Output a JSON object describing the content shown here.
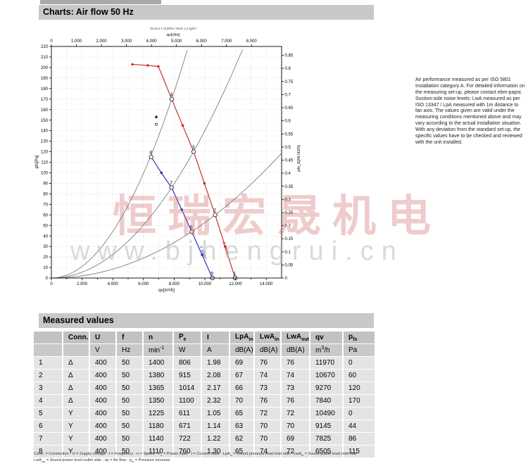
{
  "page": {
    "section1_title": "Charts: Air flow 50 Hz",
    "section2_title": "Measured values"
  },
  "side_note": "Air performance measured as per ISO 5801 Installation category A. For detailed information on the measuring set-up, please contact ebm-papst. Suction-side noise levels: LwA measured as per ISO 13347 / LpA measured with 1m distance to fan axis. The values given are valid under the measuring conditions mentioned above and may vary according to the actual installation situation. With any deviation from the standard set-up, the specific values have to be checked and reviewed with the unit installed.",
  "watermark": {
    "cjk": "恒瑞宏晟机电",
    "url": "www.bjhengrui.cn"
  },
  "chart_data": {
    "type": "line",
    "top_note": "Druck p 1 013hPa / Norm 1,2 kg/m³",
    "axes": {
      "top": {
        "label": "qv[cfm]",
        "max": 8000,
        "step": 1000,
        "m3h_per_unit": 1.63
      },
      "bottom": {
        "label": "qv[m³/h]",
        "min": 0,
        "max": 15000,
        "label_step": 2000,
        "minor_step": 1000
      },
      "left": {
        "label": "pfs[Pa]",
        "min": 0,
        "max": 220,
        "step": 10
      },
      "right": {
        "label": "pfs_E[IN H2O]",
        "max": 0.85,
        "step": 0.05,
        "pa_per_unit": 249
      }
    },
    "series": [
      {
        "name": "Δ 400V",
        "connection": "Δ",
        "color": "#c62828",
        "label_pos": [
          11150,
          34
        ],
        "label_rot": 72,
        "points": [
          [
            5275,
            203,
            "dot"
          ],
          [
            6280,
            202,
            "dot"
          ],
          [
            6970,
            201,
            "dot"
          ],
          [
            7200,
            193,
            "none"
          ],
          [
            7840,
            170,
            "num",
            "4"
          ],
          [
            8550,
            145,
            "sq"
          ],
          [
            9270,
            120,
            "num",
            "3"
          ],
          [
            9970,
            90,
            "sq"
          ],
          [
            10670,
            60,
            "num",
            "2"
          ],
          [
            11320,
            30,
            "sq"
          ],
          [
            11970,
            0,
            "num",
            "1"
          ]
        ]
      },
      {
        "name": "Y 400V",
        "connection": "Y",
        "color": "#2b2bb5",
        "label_pos": [
          9640,
          30
        ],
        "label_rot": 68,
        "points": [
          [
            6505,
            115,
            "num",
            "8"
          ],
          [
            7165,
            100,
            "sq"
          ],
          [
            7825,
            86,
            "num",
            "7"
          ],
          [
            8490,
            65,
            "sq"
          ],
          [
            9145,
            44,
            "num",
            "6"
          ],
          [
            9820,
            22,
            "sq"
          ],
          [
            10490,
            0,
            "num",
            "5"
          ]
        ]
      }
    ],
    "system_curves": [
      {
        "k": 2.766
      },
      {
        "k": 1.4
      },
      {
        "k": 0.527
      }
    ],
    "extra_markers": [
      {
        "q": 6835,
        "p": 153,
        "shape": "diamond"
      },
      {
        "q": 6835,
        "p": 146,
        "shape": "circle"
      }
    ]
  },
  "table": {
    "headers": [
      "",
      "Conn.",
      "U",
      "f",
      "n",
      "P_{e}",
      "I",
      "LpA_{in}",
      "LwA_{in}",
      "LwA_{out}",
      "qv",
      "p_{fs}"
    ],
    "units": [
      "",
      "",
      "V",
      "Hz",
      "min^{-1}",
      "W",
      "A",
      "dB(A)",
      "dB(A)",
      "dB(A)",
      "m^{3}/h",
      "Pa"
    ],
    "rows": [
      [
        "1",
        "Δ",
        "400",
        "50",
        "1400",
        "806",
        "1.98",
        "69",
        "76",
        "76",
        "11970",
        "0"
      ],
      [
        "2",
        "Δ",
        "400",
        "50",
        "1380",
        "915",
        "2.08",
        "67",
        "74",
        "74",
        "10670",
        "60"
      ],
      [
        "3",
        "Δ",
        "400",
        "50",
        "1365",
        "1014",
        "2.17",
        "66",
        "73",
        "73",
        "9270",
        "120"
      ],
      [
        "4",
        "Δ",
        "400",
        "50",
        "1350",
        "1100",
        "2.32",
        "70",
        "76",
        "76",
        "7840",
        "170"
      ],
      [
        "5",
        "Y",
        "400",
        "50",
        "1225",
        "611",
        "1.05",
        "65",
        "72",
        "72",
        "10490",
        "0"
      ],
      [
        "6",
        "Y",
        "400",
        "50",
        "1180",
        "671",
        "1.14",
        "63",
        "70",
        "70",
        "9145",
        "44"
      ],
      [
        "7",
        "Y",
        "400",
        "50",
        "1140",
        "722",
        "1.22",
        "62",
        "70",
        "69",
        "7825",
        "86"
      ],
      [
        "8",
        "Y",
        "400",
        "50",
        "1110",
        "760",
        "1.30",
        "65",
        "74",
        "72",
        "6505",
        "115"
      ]
    ]
  },
  "footnotes": {
    "line1": "Conn. = Connection · U = Supply voltage · f = Frequency · n = Speed · P_{e} = Power input · I = Current draw · LpA_{in} = Sound pressure level inlet side · LwA_{in} = Sound power level inlet side",
    "line2": "LwA_{out} = Sound power level outlet side · qv = Air flow · p_{fs} = Pressure increase"
  }
}
